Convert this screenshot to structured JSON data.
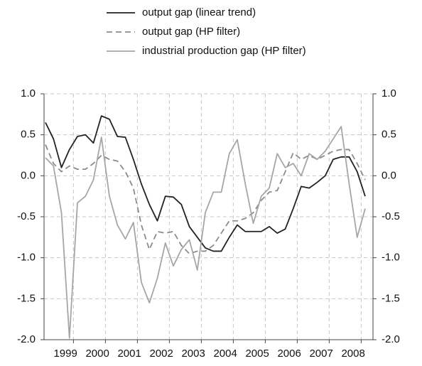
{
  "chart_data": {
    "type": "line",
    "categories": [
      null,
      null,
      null,
      "1999",
      null,
      null,
      null,
      "2000",
      null,
      null,
      null,
      "2001",
      null,
      null,
      null,
      "2002",
      null,
      null,
      null,
      "2003",
      null,
      null,
      null,
      "2004",
      null,
      null,
      null,
      "2005",
      null,
      null,
      null,
      "2006",
      null,
      null,
      null,
      "2007",
      null,
      null,
      null,
      "2008",
      null
    ],
    "series": [
      {
        "name": "output gap (linear trend)",
        "color": "#222222",
        "dash": "none",
        "values": [
          0.65,
          0.45,
          0.1,
          0.32,
          0.48,
          0.5,
          0.4,
          0.73,
          0.69,
          0.48,
          0.47,
          0.2,
          -0.1,
          -0.35,
          -0.55,
          -0.25,
          -0.26,
          -0.35,
          -0.62,
          -0.75,
          -0.88,
          -0.92,
          -0.92,
          -0.75,
          -0.6,
          -0.68,
          -0.68,
          -0.68,
          -0.62,
          -0.7,
          -0.65,
          -0.4,
          -0.13,
          -0.15,
          -0.08,
          0.0,
          0.2,
          0.23,
          0.23,
          0.05,
          -0.25
        ]
      },
      {
        "name": "output gap (HP filter)",
        "color": "#8c8c8c",
        "dash": "8,5",
        "values": [
          0.38,
          0.15,
          0.05,
          0.12,
          0.08,
          0.08,
          0.15,
          0.25,
          0.2,
          0.18,
          0.05,
          -0.15,
          -0.6,
          -0.9,
          -0.68,
          -0.7,
          -0.68,
          -0.85,
          -0.95,
          -0.92,
          -0.92,
          -0.85,
          -0.7,
          -0.55,
          -0.55,
          -0.52,
          -0.45,
          -0.3,
          -0.2,
          -0.18,
          0.05,
          0.28,
          0.2,
          0.25,
          0.2,
          0.25,
          0.3,
          0.32,
          0.32,
          0.15,
          -0.05
        ]
      },
      {
        "name": "industrial production gap (HP filter)",
        "color": "#a6a6a6",
        "dash": "none",
        "values": [
          0.22,
          0.12,
          -0.45,
          -1.98,
          -0.33,
          -0.25,
          -0.05,
          0.47,
          -0.25,
          -0.6,
          -0.77,
          -0.57,
          -1.3,
          -1.55,
          -1.25,
          -0.82,
          -1.1,
          -0.9,
          -0.78,
          -1.15,
          -0.45,
          -0.2,
          -0.2,
          0.27,
          0.44,
          -0.1,
          -0.58,
          -0.25,
          -0.15,
          0.27,
          0.1,
          0.15,
          0.0,
          0.27,
          0.2,
          0.3,
          0.45,
          0.6,
          -0.1,
          -0.75,
          -0.4
        ]
      }
    ],
    "ylim": [
      -2,
      1
    ],
    "yticks": [
      {
        "value": 1,
        "label": "1.0"
      },
      0.5,
      {
        "value": 0,
        "label": "0.0"
      },
      -0.5,
      {
        "value": -1,
        "label": "-1.0"
      },
      -1.5,
      {
        "value": -2,
        "label": "-2.0"
      }
    ],
    "grid": true,
    "legend": "top"
  }
}
